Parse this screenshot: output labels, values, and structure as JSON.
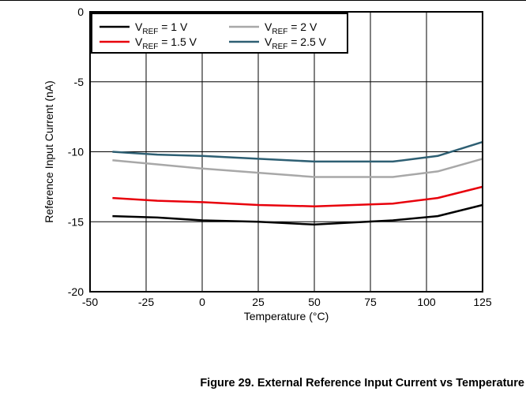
{
  "figure": {
    "caption": "Figure 29. External Reference Input Current vs Temperature"
  },
  "chart_data": {
    "type": "line",
    "xlabel": "Temperature (°C)",
    "ylabel": "Reference Input Current (nA)",
    "xlim": [
      -50,
      125
    ],
    "ylim": [
      -20,
      0
    ],
    "xticks": [
      -50,
      -25,
      0,
      25,
      50,
      75,
      100,
      125
    ],
    "yticks": [
      0,
      -5,
      -10,
      -15,
      -20
    ],
    "grid": true,
    "legend_position": "top-left",
    "series": [
      {
        "name": "VREF = 1 V",
        "legend_main": "V",
        "legend_sub": "REF",
        "legend_rest": " = 1 V",
        "color": "#000000",
        "x": [
          -40,
          -20,
          0,
          25,
          50,
          85,
          105,
          125
        ],
        "y": [
          -14.6,
          -14.7,
          -14.9,
          -15.0,
          -15.2,
          -14.9,
          -14.6,
          -13.8
        ]
      },
      {
        "name": "VREF = 1.5 V",
        "legend_main": "V",
        "legend_sub": "REF",
        "legend_rest": " = 1.5 V",
        "color": "#e8000b",
        "x": [
          -40,
          -20,
          0,
          25,
          50,
          85,
          105,
          125
        ],
        "y": [
          -13.3,
          -13.5,
          -13.6,
          -13.8,
          -13.9,
          -13.7,
          -13.3,
          -12.5
        ]
      },
      {
        "name": "VREF = 2 V",
        "legend_main": "V",
        "legend_sub": "REF",
        "legend_rest": " = 2 V",
        "color": "#a8a8a8",
        "x": [
          -40,
          -20,
          0,
          25,
          50,
          85,
          105,
          125
        ],
        "y": [
          -10.6,
          -10.9,
          -11.2,
          -11.5,
          -11.8,
          -11.8,
          -11.4,
          -10.5
        ]
      },
      {
        "name": "VREF = 2.5 V",
        "legend_main": "V",
        "legend_sub": "REF",
        "legend_rest": " = 2.5 V",
        "color": "#2e5f73",
        "x": [
          -40,
          -20,
          0,
          25,
          50,
          85,
          105,
          125
        ],
        "y": [
          -10.0,
          -10.2,
          -10.3,
          -10.5,
          -10.7,
          -10.7,
          -10.3,
          -9.3
        ]
      }
    ]
  }
}
